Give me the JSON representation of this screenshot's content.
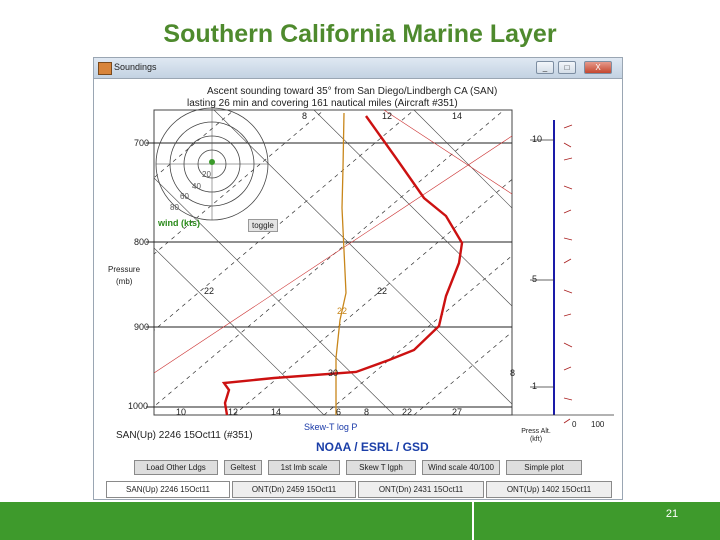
{
  "slide": {
    "title": "Southern California Marine Layer",
    "page_number": "21"
  },
  "window": {
    "title": "Soundings",
    "controls": [
      "_",
      "□",
      "X"
    ]
  },
  "plot": {
    "header_line1": "Ascent sounding toward 35° from San Diego/Lindbergh CA (SAN)",
    "header_line2": "lasting 26 min and covering 161 nautical miles (Aircraft #351)",
    "pressure_label": "Pressure",
    "pressure_units": "(mb)",
    "pressure_ticks": [
      "700",
      "800",
      "900",
      "1000"
    ],
    "temp_ticks": [
      "10",
      "12",
      "14",
      "6",
      "8",
      "22",
      "27"
    ],
    "top_temp_ticks": [
      "8",
      "12",
      "14"
    ],
    "isotherm_labels": [
      "22",
      "22",
      "22",
      "30",
      "8"
    ],
    "hodo_labels": [
      "20",
      "40",
      "60",
      "80"
    ],
    "wind_label": "wind (kts)",
    "toggle_label": "toggle",
    "station_line": "SAN(Up) 2246 15Oct11 (#351)",
    "skewt_label": "Skew-T log P",
    "noaa_label": "NOAA / ESRL / GSD",
    "press_alt_label": "Press Alt. (kft)",
    "alt_ticks": [
      "10",
      "5",
      "1",
      "0"
    ],
    "alt_bottom_ticks": [
      "0",
      "100"
    ]
  },
  "buttons": [
    "Load Other Ldgs",
    "Geltest",
    "1st lmb scale",
    "Skew T lgph",
    "Wind scale 40/100",
    "Simple plot"
  ],
  "tabs": [
    "SAN(Up) 2246 15Oct11",
    "ONT(Dn) 2459 15Oct11",
    "ONT(Dn) 2431 15Oct11",
    "ONT(Up) 1402 15Oct11"
  ],
  "colors": {
    "title_green": "#4e8a2d",
    "footer_green": "#3e9a2c",
    "temp_profile": "#cc1111",
    "dewpoint_profile": "#c8861a",
    "wind_axis": "#1a1aa8",
    "noaa_blue": "#1b3fa8"
  }
}
